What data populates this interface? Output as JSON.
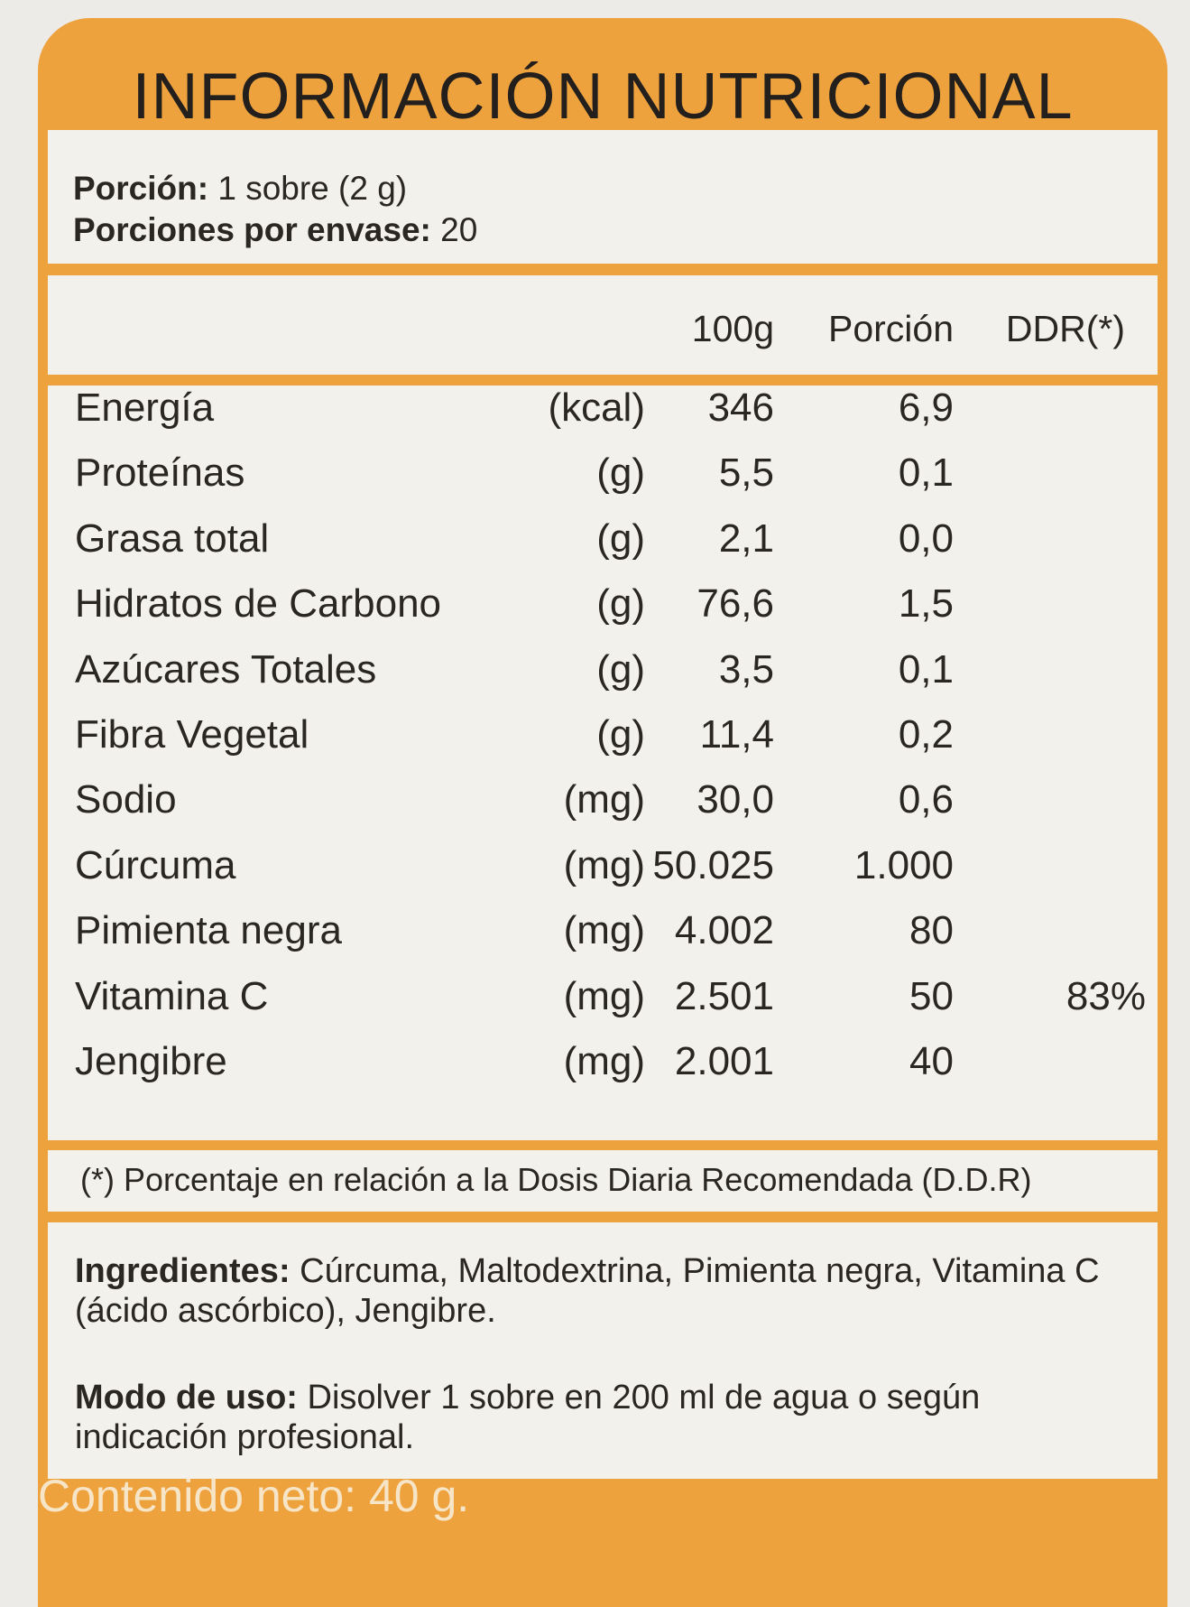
{
  "title": "INFORMACIÓN NUTRICIONAL",
  "serving": {
    "size_label": "Porción:",
    "size_value": "1 sobre (2 g)",
    "count_label": "Porciones por envase:",
    "count_value": "20"
  },
  "columns": {
    "per100": "100g",
    "portion": "Porción",
    "ddr": "DDR(*)"
  },
  "rows": [
    {
      "name": "Energía",
      "unit": "(kcal)",
      "per100": "346",
      "portion": "6,9",
      "ddr": ""
    },
    {
      "name": "Proteínas",
      "unit": "(g)",
      "per100": "5,5",
      "portion": "0,1",
      "ddr": ""
    },
    {
      "name": "Grasa total",
      "unit": "(g)",
      "per100": "2,1",
      "portion": "0,0",
      "ddr": ""
    },
    {
      "name": "Hidratos de Carbono",
      "unit": "(g)",
      "per100": "76,6",
      "portion": "1,5",
      "ddr": ""
    },
    {
      "name": "Azúcares Totales",
      "unit": "(g)",
      "per100": "3,5",
      "portion": "0,1",
      "ddr": ""
    },
    {
      "name": "Fibra Vegetal",
      "unit": "(g)",
      "per100": "11,4",
      "portion": "0,2",
      "ddr": ""
    },
    {
      "name": "Sodio",
      "unit": "(mg)",
      "per100": "30,0",
      "portion": "0,6",
      "ddr": ""
    },
    {
      "name": "Cúrcuma",
      "unit": "(mg)",
      "per100": "50.025",
      "portion": "1.000",
      "ddr": ""
    },
    {
      "name": "Pimienta negra",
      "unit": "(mg)",
      "per100": "4.002",
      "portion": "80",
      "ddr": ""
    },
    {
      "name": "Vitamina C",
      "unit": "(mg)",
      "per100": "2.501",
      "portion": "50",
      "ddr": "83%"
    },
    {
      "name": "Jengibre",
      "unit": "(mg)",
      "per100": "2.001",
      "portion": "40",
      "ddr": ""
    }
  ],
  "footnote": "(*) Porcentaje en relación a la Dosis Diaria Recomendada (D.D.R)",
  "ingredients": {
    "label": "Ingredientes:",
    "text": "Cúrcuma, Maltodextrina, Pimienta negra, Vitamina C (ácido ascórbico), Jengibre."
  },
  "usage": {
    "label": "Modo de uso:",
    "text": "Disolver 1 sobre en 200 ml de agua o  según indicación profesional."
  },
  "net_content": "Contenido neto: 40 g.",
  "colors": {
    "accent": "#eea23e",
    "panel": "#f3f1ec",
    "text": "#2a2622"
  }
}
